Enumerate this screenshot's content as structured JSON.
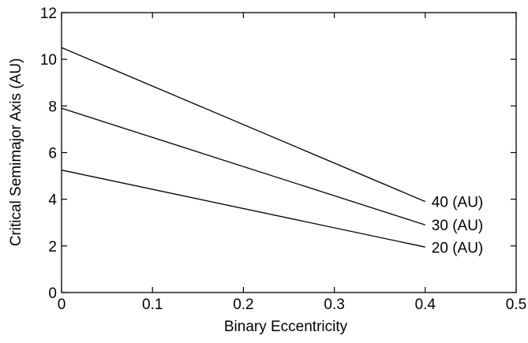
{
  "chart_data": {
    "type": "line",
    "xlabel": "Binary Eccentricity",
    "ylabel": "Critical Semimajor Axis (AU)",
    "xlim": [
      0,
      0.5
    ],
    "ylim": [
      0,
      12
    ],
    "xticks": [
      0,
      0.1,
      0.2,
      0.3,
      0.4,
      0.5
    ],
    "xtick_labels": [
      "0",
      "0.1",
      "0.2",
      "0.3",
      "0.4",
      "0.5"
    ],
    "yticks": [
      0,
      2,
      4,
      6,
      8,
      10,
      12
    ],
    "ytick_labels": [
      "0",
      "2",
      "4",
      "6",
      "8",
      "10",
      "12"
    ],
    "grid": false,
    "legend": "none",
    "series": [
      {
        "name": "40 (AU)",
        "color": "#000000",
        "x": [
          0,
          0.4
        ],
        "y": [
          10.5,
          3.9
        ]
      },
      {
        "name": "30 (AU)",
        "color": "#000000",
        "x": [
          0,
          0.4
        ],
        "y": [
          7.9,
          2.9
        ]
      },
      {
        "name": "20 (AU)",
        "color": "#000000",
        "x": [
          0,
          0.4
        ],
        "y": [
          5.25,
          1.95
        ]
      }
    ]
  }
}
